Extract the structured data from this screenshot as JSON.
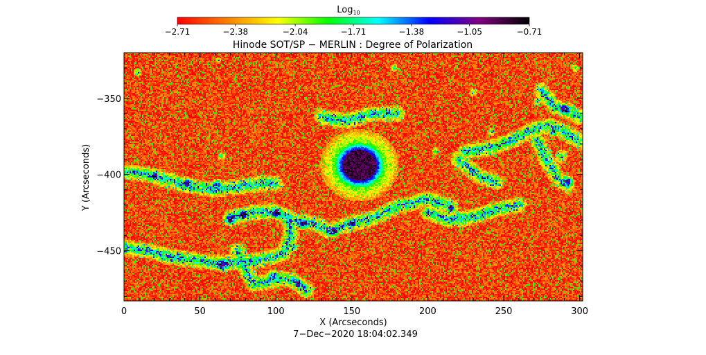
{
  "chart_data": {
    "type": "heatmap",
    "title": "Hinode SOT/SP − MERLIN : Degree of Polarization",
    "xlabel": "X (Arcseconds)",
    "ylabel": "Y (Arcseconds)",
    "timestamp": "7−Dec−2020 18:04:02.349",
    "xlim": [
      0,
      302
    ],
    "ylim": [
      -483,
      -320
    ],
    "x_ticks": [
      0,
      50,
      100,
      150,
      200,
      250,
      300
    ],
    "x_tick_labels": [
      "0",
      "50",
      "100",
      "150",
      "200",
      "250",
      "300"
    ],
    "y_ticks": [
      -350,
      -400,
      -450
    ],
    "y_tick_labels": [
      "−350",
      "−400",
      "−450"
    ],
    "colorbar": {
      "label": "Log",
      "label_subscript": "10",
      "range": [
        -2.71,
        -0.71
      ],
      "ticks": [
        -2.71,
        -2.38,
        -2.04,
        -1.71,
        -1.38,
        -1.05,
        -0.71
      ],
      "tick_labels": [
        "−2.71",
        "−2.38",
        "−2.04",
        "−1.71",
        "−1.38",
        "−1.05",
        "−0.71"
      ],
      "colormap": [
        "#ff0000",
        "#ff8000",
        "#ffff00",
        "#00ff00",
        "#00ffff",
        "#0000ff",
        "#800080",
        "#000000"
      ]
    },
    "features": {
      "background_level": -2.55,
      "sunspot": {
        "x": 155,
        "y": -394,
        "umbra_radius": 11,
        "penumbra_radius": 16,
        "value": -0.85
      },
      "network_lanes": [
        [
          [
            70,
            -428
          ],
          [
            85,
            -425
          ],
          [
            100,
            -424
          ],
          [
            110,
            -430
          ],
          [
            125,
            -432
          ],
          [
            135,
            -437
          ],
          [
            150,
            -432
          ],
          [
            165,
            -428
          ],
          [
            180,
            -421
          ],
          [
            200,
            -416
          ],
          [
            215,
            -421
          ]
        ],
        [
          [
            0,
            -398
          ],
          [
            15,
            -400
          ],
          [
            30,
            -404
          ],
          [
            45,
            -408
          ],
          [
            60,
            -410
          ],
          [
            75,
            -408
          ],
          [
            90,
            -406
          ],
          [
            100,
            -406
          ]
        ],
        [
          [
            0,
            -448
          ],
          [
            15,
            -450
          ],
          [
            30,
            -454
          ],
          [
            45,
            -456
          ],
          [
            60,
            -458
          ],
          [
            75,
            -458
          ],
          [
            90,
            -456
          ],
          [
            105,
            -452
          ],
          [
            110,
            -440
          ],
          [
            108,
            -428
          ]
        ],
        [
          [
            75,
            -450
          ],
          [
            80,
            -462
          ],
          [
            85,
            -472
          ],
          [
            95,
            -470
          ],
          [
            103,
            -468
          ],
          [
            112,
            -470
          ],
          [
            120,
            -476
          ]
        ],
        [
          [
            225,
            -385
          ],
          [
            240,
            -383
          ],
          [
            255,
            -378
          ],
          [
            270,
            -370
          ],
          [
            280,
            -368
          ],
          [
            290,
            -372
          ],
          [
            300,
            -378
          ]
        ],
        [
          [
            272,
            -378
          ],
          [
            278,
            -390
          ],
          [
            285,
            -402
          ],
          [
            292,
            -407
          ]
        ],
        [
          [
            275,
            -345
          ],
          [
            283,
            -355
          ],
          [
            292,
            -358
          ],
          [
            300,
            -362
          ]
        ],
        [
          [
            200,
            -425
          ],
          [
            215,
            -430
          ],
          [
            230,
            -428
          ],
          [
            245,
            -423
          ],
          [
            260,
            -420
          ]
        ],
        [
          [
            220,
            -390
          ],
          [
            232,
            -400
          ],
          [
            245,
            -405
          ]
        ],
        [
          [
            130,
            -362
          ],
          [
            145,
            -365
          ],
          [
            165,
            -360
          ],
          [
            180,
            -360
          ]
        ]
      ],
      "bright_blobs": [
        [
          70,
          -430,
          5
        ],
        [
          78,
          -426,
          4
        ],
        [
          100,
          -426,
          4
        ],
        [
          118,
          -433,
          4
        ],
        [
          138,
          -438,
          4
        ],
        [
          150,
          -432,
          3
        ],
        [
          65,
          -460,
          5
        ],
        [
          98,
          -466,
          4
        ],
        [
          115,
          -471,
          3
        ],
        [
          112,
          -448,
          3
        ],
        [
          288,
          -388,
          5
        ],
        [
          293,
          -404,
          4
        ],
        [
          290,
          -357,
          4
        ],
        [
          282,
          -373,
          3
        ],
        [
          272,
          -352,
          3
        ],
        [
          297,
          -330,
          3
        ],
        [
          61,
          -406,
          4
        ],
        [
          42,
          -405,
          3
        ],
        [
          20,
          -400,
          3
        ],
        [
          64,
          -388,
          3
        ],
        [
          215,
          -423,
          3
        ],
        [
          205,
          -385,
          3
        ],
        [
          242,
          -372,
          3
        ],
        [
          178,
          -330,
          3
        ],
        [
          230,
          -346,
          3
        ],
        [
          9,
          -333,
          3
        ],
        [
          62,
          -325,
          2
        ],
        [
          160,
          -380,
          2
        ],
        [
          160,
          -408,
          2
        ],
        [
          168,
          -398,
          2
        ]
      ]
    }
  }
}
